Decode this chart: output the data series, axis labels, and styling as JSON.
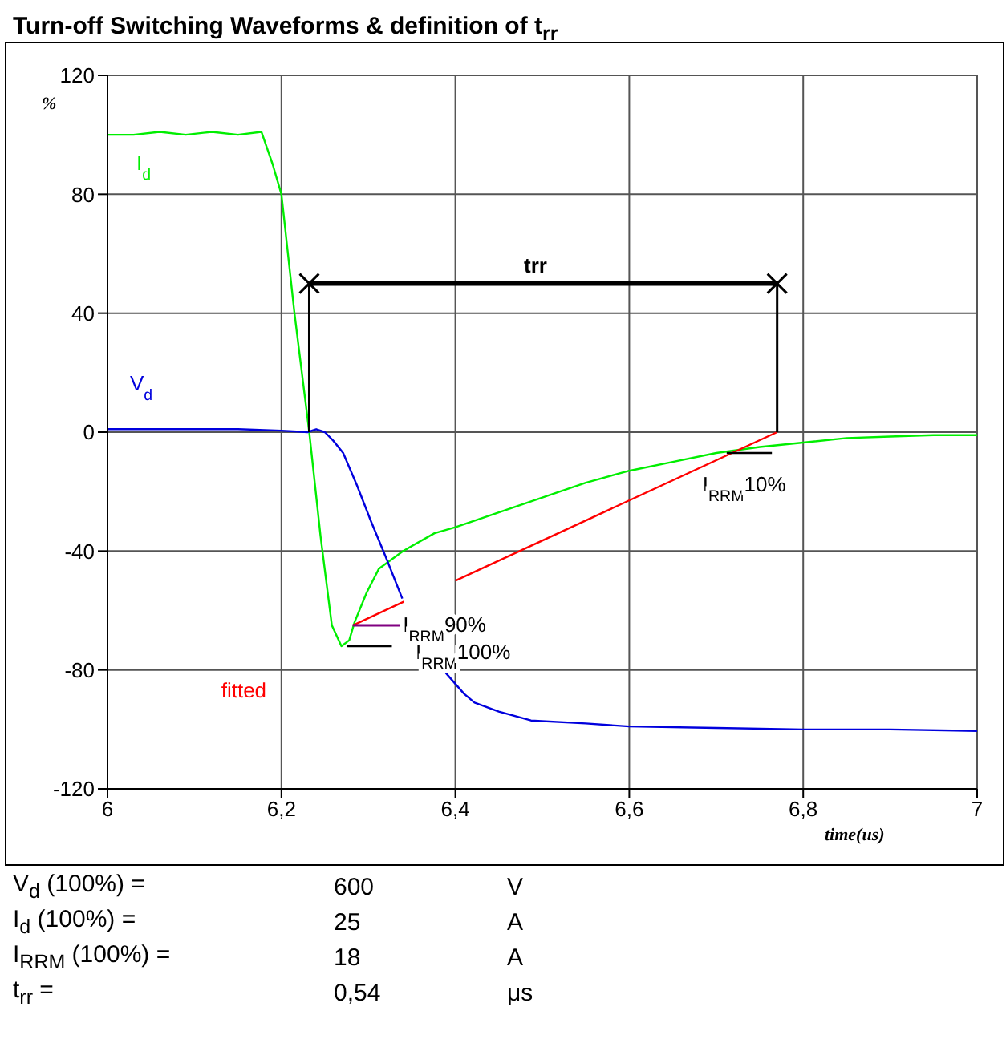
{
  "chart_data": {
    "type": "line",
    "title": "Turn-off  Switching Waveforms & definition of t$_{rr}$",
    "xlabel": "time(us)",
    "ylabel": "%",
    "xlim": [
      6,
      7
    ],
    "xticks": [
      6,
      {
        "value": 6.2,
        "label": "6,2"
      },
      {
        "value": 6.4,
        "label": "6,4"
      },
      {
        "value": 6.6,
        "label": "6,6"
      },
      {
        "value": 6.8,
        "label": "6,8"
      },
      7
    ],
    "ylim": [
      -120,
      120
    ],
    "yticks": [
      -120,
      -80,
      -40,
      0,
      40,
      80,
      120
    ],
    "grid": true,
    "legend": false,
    "series": [
      {
        "name": "I$_{d}$",
        "color": "#00ee00",
        "x": [
          6,
          6.03,
          6.06,
          6.09,
          6.12,
          6.15,
          6.177,
          6.19,
          6.2,
          6.215,
          6.232,
          6.245,
          6.258,
          6.269,
          6.278,
          6.284,
          6.298,
          6.312,
          6.34,
          6.376,
          6.4,
          6.45,
          6.5,
          6.55,
          6.6,
          6.65,
          6.7,
          6.75,
          6.8,
          6.85,
          6.9,
          6.95,
          7
        ],
        "values": [
          100,
          100,
          101,
          100,
          101,
          100,
          101,
          90,
          80,
          40,
          0,
          -35,
          -65,
          -72,
          -70,
          -64,
          -54,
          -46,
          -40,
          -34,
          -32,
          -27,
          -22,
          -17,
          -13,
          -10,
          -7,
          -5,
          -3.5,
          -2,
          -1.5,
          -1,
          -1
        ]
      },
      {
        "name": "V$_{d}$",
        "color": "#0000dd",
        "x": [
          6,
          6.05,
          6.1,
          6.15,
          6.2,
          6.23,
          6.24,
          6.25,
          6.26,
          6.271,
          6.287,
          6.303,
          6.32,
          6.339,
          6.36,
          6.389,
          6.41,
          6.422,
          6.45,
          6.487,
          6.55,
          6.6,
          6.7,
          6.8,
          6.9,
          7
        ],
        "values": [
          1,
          1,
          1,
          1,
          0.5,
          0,
          1,
          0,
          -3,
          -7,
          -18,
          -30,
          -42,
          -56,
          null,
          -81,
          -88,
          -91,
          -94,
          -97,
          -98,
          -99,
          -99.5,
          -100,
          -100,
          -100.5
        ]
      },
      {
        "name": "fitted",
        "color": "#ff0000",
        "x": [
          6.282,
          6.341,
          6.37,
          6.4,
          6.77
        ],
        "values": [
          -65,
          -57,
          null,
          -50,
          0
        ]
      },
      {
        "color": "#800080",
        "x": [
          6.282,
          6.336
        ],
        "values": [
          -65,
          -65
        ]
      },
      {
        "name": "I$_{RRM}$100%",
        "color": "#000000",
        "x": [
          6.275,
          6.327
        ],
        "values": [
          -72,
          -72
        ]
      },
      {
        "name": "I$_{RRM}$10%",
        "color": "#000000",
        "x": [
          6.712,
          6.764
        ],
        "values": [
          -7,
          -7
        ]
      },
      {
        "name": "trr",
        "color": "#000000",
        "marker": "cross",
        "x": [
          6.232,
          6.77
        ],
        "values": [
          50,
          50
        ]
      },
      {
        "color": "#000000",
        "x": [
          6.232,
          6.232,
          6.5,
          6.77,
          6.77
        ],
        "values": [
          0,
          50,
          null,
          50,
          0
        ]
      }
    ],
    "annotations": [
      {
        "text": "I$_{RRM}$90%",
        "x": 6.336,
        "y": -65
      },
      "V$_{d}$ (100%) =",
      "600",
      "V",
      "I$_{d}$ (100%) =",
      "25",
      "A",
      "I$_{RRM}$ (100%) =",
      "18",
      "A",
      "t$_{rr}$ =",
      "0,54",
      "μs"
    ]
  }
}
